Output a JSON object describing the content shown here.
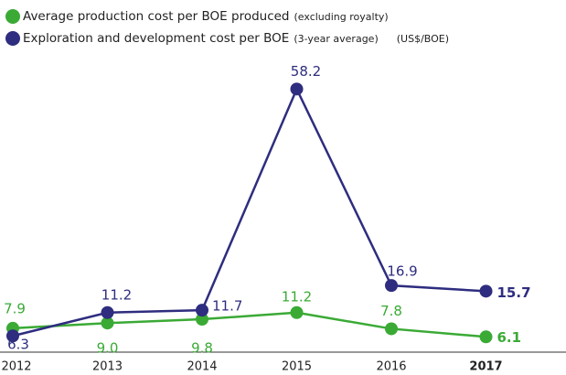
{
  "chart_data": {
    "type": "line",
    "categories": [
      "2012",
      "2013",
      "2014",
      "2015",
      "2016",
      "2017"
    ],
    "series": [
      {
        "name": "Average production cost per BOE produced",
        "note": "(excluding royalty)",
        "color": "#3aaa35",
        "values": [
          7.9,
          9.0,
          9.8,
          11.2,
          7.8,
          6.1
        ],
        "value_labels": [
          "7.9",
          "9.0",
          "9.8",
          "11.2",
          "7.8",
          "6.1"
        ]
      },
      {
        "name": "Exploration and development cost per BOE",
        "note": "(3-year average)",
        "color": "#2e2d7f",
        "values": [
          6.3,
          11.2,
          11.7,
          58.2,
          16.9,
          15.7
        ],
        "value_labels": [
          "6.3",
          "11.2",
          "11.7",
          "58.2",
          "16.9",
          "15.7"
        ]
      }
    ],
    "unit": "(US$/BOE)",
    "ylim": [
      0,
      60
    ]
  }
}
